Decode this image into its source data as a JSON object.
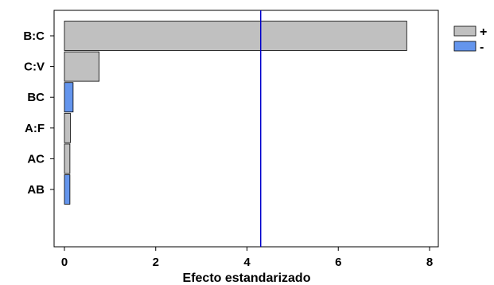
{
  "chart_data": {
    "type": "bar",
    "orientation": "horizontal",
    "title": "",
    "xlabel": "Efecto estandarizado",
    "ylabel": "",
    "xlim": [
      0,
      8
    ],
    "xticks": [
      "0",
      "2",
      "4",
      "6",
      "8"
    ],
    "categories": [
      "B:C",
      "C:V",
      "BC",
      "A:F",
      "AC",
      "AB"
    ],
    "values": [
      7.5,
      0.76,
      0.19,
      0.13,
      0.12,
      0.12
    ],
    "signs": [
      "+",
      "+",
      "-",
      "+",
      "+",
      "-"
    ],
    "reference_line": 4.3,
    "legend": [
      {
        "label": "+",
        "color": "#c0c0c0"
      },
      {
        "label": "-",
        "color": "#6495ed"
      }
    ],
    "legend_position": "top-right",
    "colors": {
      "positive": "#c0c0c0",
      "negative": "#6495ed",
      "reference": "#0000cc"
    }
  }
}
